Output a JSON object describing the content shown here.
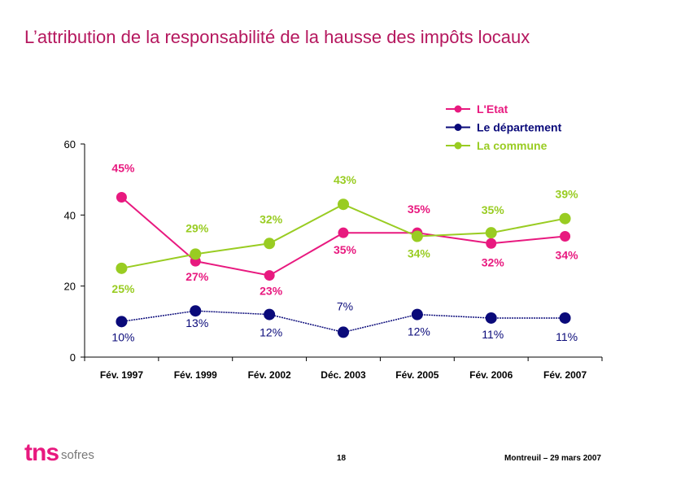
{
  "page": {
    "title": "L’attribution de la responsabilité de la hausse des impôts locaux",
    "page_number": "18",
    "footer": "Montreuil – 29 mars 2007",
    "logo": {
      "tns": "tns",
      "sofres": "sofres"
    }
  },
  "colors": {
    "etat": "#e8197f",
    "departement": "#0a0a7a",
    "commune": "#99cc22",
    "title": "#b5175e"
  },
  "chart_data": {
    "type": "line",
    "title": "L’attribution de la responsabilité de la hausse des impôts locaux",
    "xlabel": "",
    "ylabel": "",
    "ylim": [
      0,
      60
    ],
    "yticks": [
      0,
      20,
      40,
      60
    ],
    "legend_position": "top-right",
    "categories": [
      "Fév. 1997",
      "Fév. 1999",
      "Fév. 2002",
      "Déc. 2003",
      "Fév. 2005",
      "Fév. 2006",
      "Fév. 2007"
    ],
    "series": [
      {
        "key": "etat",
        "name": "L'Etat",
        "values": [
          45,
          27,
          23,
          35,
          35,
          32,
          34
        ],
        "labels": [
          "45%",
          "27%",
          "23%",
          "35%",
          "35%",
          "32%",
          "34%"
        ]
      },
      {
        "key": "departement",
        "name": "Le département",
        "values": [
          10,
          13,
          12,
          7,
          12,
          11,
          11
        ],
        "labels": [
          "10%",
          "13%",
          "12%",
          "7%",
          "12%",
          "11%",
          "11%"
        ]
      },
      {
        "key": "commune",
        "name": "La commune",
        "values": [
          25,
          29,
          32,
          43,
          34,
          35,
          39
        ],
        "labels": [
          "25%",
          "29%",
          "32%",
          "43%",
          "34%",
          "35%",
          "39%"
        ]
      }
    ]
  }
}
